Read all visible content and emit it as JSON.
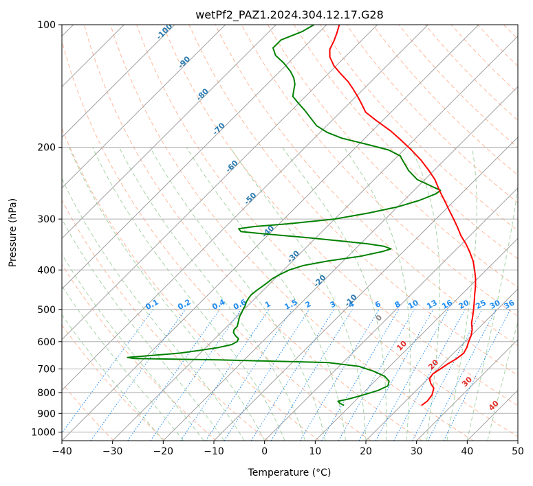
{
  "chart_data": {
    "type": "line",
    "title": "wetPf2_PAZ1.2024.304.12.17.G28",
    "xlabel": "Temperature (°C)",
    "ylabel": "Pressure (hPa)",
    "xlim": [
      -40,
      50
    ],
    "ylim": [
      1050,
      100
    ],
    "y_scale": "log",
    "x_ticks": [
      "−40",
      "−30",
      "−20",
      "−10",
      "0",
      "10",
      "20",
      "30",
      "40",
      "50"
    ],
    "y_ticks": [
      1000,
      900,
      800,
      700,
      600,
      500,
      400,
      300,
      200,
      100
    ],
    "grid": true,
    "skew": "skew-T log-P diagram",
    "colors": {
      "temperature": "#ff0000",
      "dewpoint": "#008000",
      "isotherms": "#a0a0a0",
      "dry_adiabats": "#ffa07a",
      "moist_adiabats": "#90c890",
      "mixing_ratio": "#1e8cf0"
    },
    "series": [
      {
        "id": "temperature",
        "points": [
          [
            24.0,
            860
          ],
          [
            24.3,
            840
          ],
          [
            24.0,
            810
          ],
          [
            23.0,
            780
          ],
          [
            21.5,
            760
          ],
          [
            20.3,
            740
          ],
          [
            20.0,
            720
          ],
          [
            20.5,
            700
          ],
          [
            21.0,
            680
          ],
          [
            21.7,
            660
          ],
          [
            22.0,
            640
          ],
          [
            21.5,
            620
          ],
          [
            20.7,
            600
          ],
          [
            20.0,
            580
          ],
          [
            19.0,
            560
          ],
          [
            17.6,
            540
          ],
          [
            16.5,
            520
          ],
          [
            15.3,
            500
          ],
          [
            14.0,
            480
          ],
          [
            12.6,
            460
          ],
          [
            11.2,
            440
          ],
          [
            9.6,
            420
          ],
          [
            7.7,
            400
          ],
          [
            5.6,
            380
          ],
          [
            3.0,
            360
          ],
          [
            0.8,
            345
          ],
          [
            -1.7,
            330
          ],
          [
            -4.0,
            315
          ],
          [
            -6.5,
            300
          ],
          [
            -9.2,
            285
          ],
          [
            -12.0,
            270
          ],
          [
            -15.0,
            255
          ],
          [
            -18.0,
            240
          ],
          [
            -21.0,
            228
          ],
          [
            -24.6,
            215
          ],
          [
            -28.5,
            203
          ],
          [
            -32.5,
            192
          ],
          [
            -36.5,
            182
          ],
          [
            -41.2,
            172
          ],
          [
            -45.0,
            164
          ],
          [
            -47.6,
            156
          ],
          [
            -49.7,
            150
          ],
          [
            -52.0,
            144
          ],
          [
            -54.5,
            138
          ],
          [
            -57.5,
            132
          ],
          [
            -60.5,
            126
          ],
          [
            -63.0,
            120
          ],
          [
            -64.5,
            115
          ],
          [
            -65.3,
            110
          ],
          [
            -66.3,
            105
          ],
          [
            -67.5,
            100
          ]
        ]
      },
      {
        "id": "dewpoint",
        "points": [
          [
            8.7,
            860
          ],
          [
            7.5,
            850
          ],
          [
            6.7,
            840
          ],
          [
            8.3,
            830
          ],
          [
            10.0,
            815
          ],
          [
            11.5,
            800
          ],
          [
            12.5,
            790
          ],
          [
            13.0,
            780
          ],
          [
            13.5,
            770
          ],
          [
            12.8,
            750
          ],
          [
            11.0,
            730
          ],
          [
            8.0,
            710
          ],
          [
            4.0,
            690
          ],
          [
            -3.0,
            675
          ],
          [
            -25.0,
            665
          ],
          [
            -42.0,
            660
          ],
          [
            -43.5,
            656
          ],
          [
            -40.0,
            650
          ],
          [
            -34.0,
            640
          ],
          [
            -30.5,
            630
          ],
          [
            -27.5,
            620
          ],
          [
            -25.5,
            610
          ],
          [
            -25.0,
            600
          ],
          [
            -25.3,
            590
          ],
          [
            -26.5,
            580
          ],
          [
            -27.5,
            570
          ],
          [
            -28.0,
            560
          ],
          [
            -28.0,
            550
          ],
          [
            -28.5,
            540
          ],
          [
            -29.0,
            530
          ],
          [
            -29.5,
            520
          ],
          [
            -29.8,
            510
          ],
          [
            -30.2,
            500
          ],
          [
            -30.5,
            490
          ],
          [
            -31.0,
            480
          ],
          [
            -31.3,
            470
          ],
          [
            -31.5,
            460
          ],
          [
            -31.3,
            450
          ],
          [
            -31.0,
            440
          ],
          [
            -30.7,
            430
          ],
          [
            -30.5,
            420
          ],
          [
            -29.8,
            410
          ],
          [
            -28.9,
            400
          ],
          [
            -27.0,
            390
          ],
          [
            -23.0,
            380
          ],
          [
            -17.5,
            370
          ],
          [
            -14.0,
            360
          ],
          [
            -13.0,
            355
          ],
          [
            -14.8,
            350
          ],
          [
            -18.5,
            345
          ],
          [
            -24.0,
            340
          ],
          [
            -32.0,
            333
          ],
          [
            -40.0,
            327
          ],
          [
            -46.0,
            322
          ],
          [
            -47.0,
            317
          ],
          [
            -44.5,
            313
          ],
          [
            -38.0,
            308
          ],
          [
            -30.0,
            300
          ],
          [
            -24.5,
            290
          ],
          [
            -20.0,
            280
          ],
          [
            -17.0,
            270
          ],
          [
            -15.0,
            260
          ],
          [
            -14.8,
            255
          ],
          [
            -17.0,
            250
          ],
          [
            -21.5,
            240
          ],
          [
            -25.0,
            228
          ],
          [
            -27.5,
            218
          ],
          [
            -29.5,
            210
          ],
          [
            -33.0,
            203
          ],
          [
            -39.0,
            196
          ],
          [
            -44.5,
            190
          ],
          [
            -48.5,
            184
          ],
          [
            -52.0,
            177
          ],
          [
            -54.5,
            170
          ],
          [
            -57.5,
            162
          ],
          [
            -60.0,
            156
          ],
          [
            -62.5,
            150
          ],
          [
            -63.5,
            145
          ],
          [
            -64.5,
            140
          ],
          [
            -66.0,
            135
          ],
          [
            -68.0,
            130
          ],
          [
            -71.0,
            124
          ],
          [
            -74.0,
            119
          ],
          [
            -76.0,
            114
          ],
          [
            -76.0,
            109
          ],
          [
            -73.5,
            104
          ],
          [
            -72.5,
            100
          ]
        ]
      }
    ],
    "mixing_ratio_labels": [
      "0.1",
      "0.2",
      "0.4",
      "0.6",
      "1",
      "1.5",
      "2",
      "3",
      "4",
      "6",
      "8",
      "10",
      "13",
      "16",
      "20",
      "25",
      "30",
      "36"
    ],
    "dry_adiabat_labels": [
      "-100",
      "-90",
      "-80",
      "-70",
      "-60",
      "-50",
      "-40",
      "-30",
      "-20",
      "-10"
    ],
    "moist_adiabat_labels": [
      "0",
      "10",
      "20",
      "30",
      "40"
    ]
  }
}
